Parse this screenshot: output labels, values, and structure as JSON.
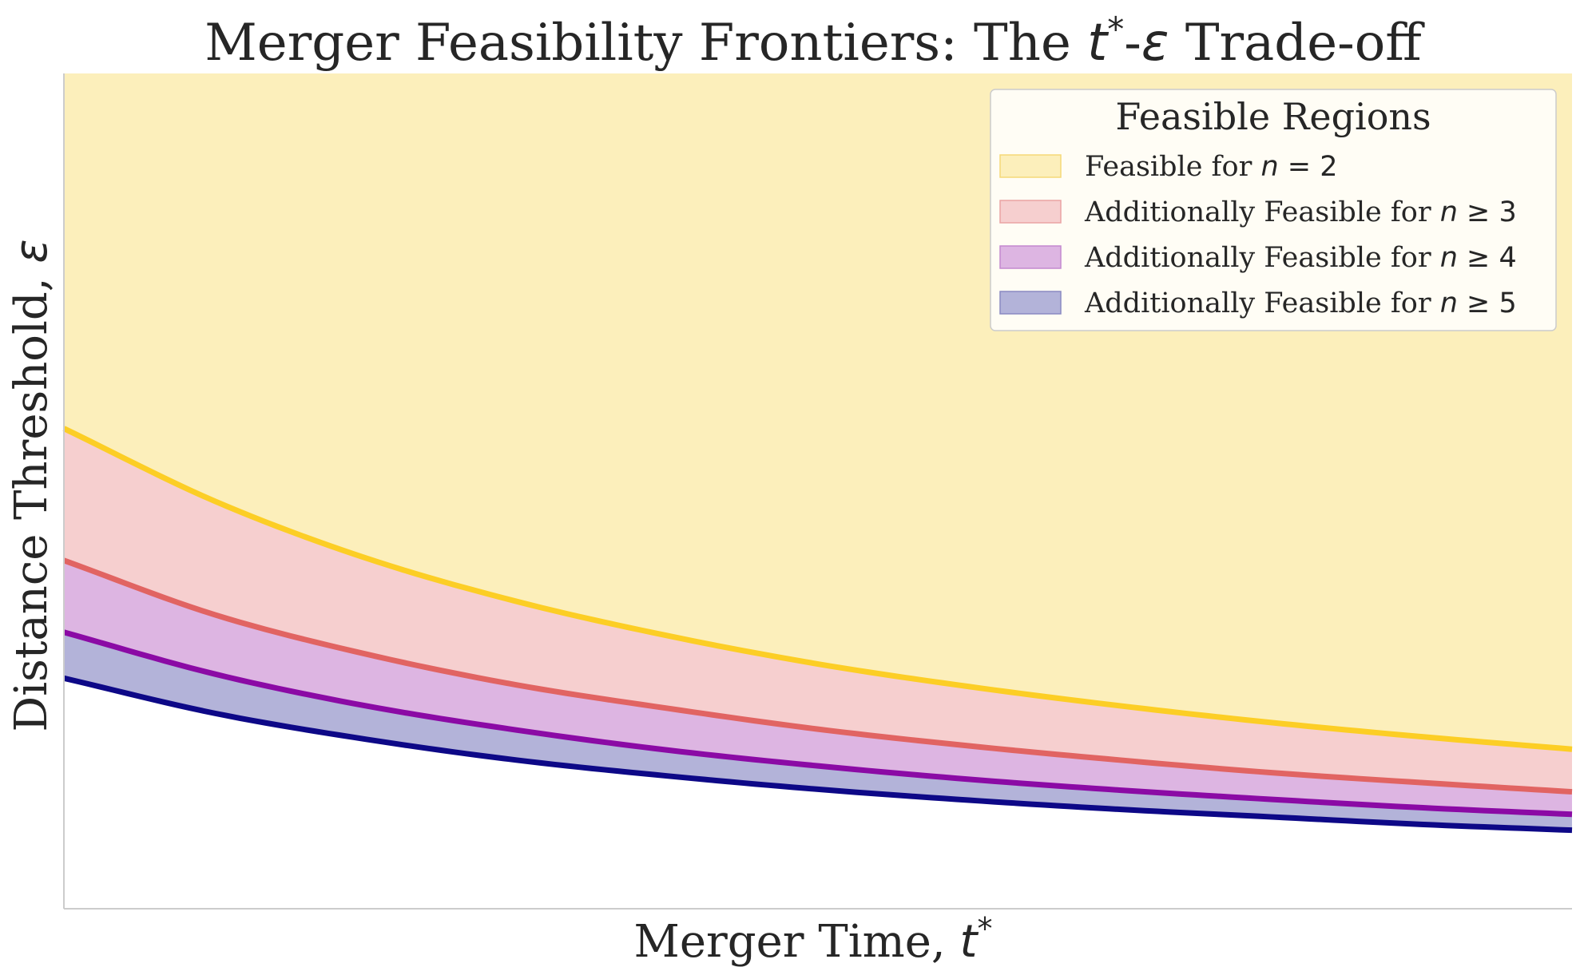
{
  "chart_data": {
    "type": "area",
    "title": {
      "prefix": "Merger Feasibility Frontiers: The ",
      "t_symbol": "t",
      "star": "*",
      "dash": "-",
      "eps_symbol": "ε",
      "suffix": " Trade-off"
    },
    "xlabel": {
      "text": "Merger Time, ",
      "symbol": "t",
      "star": "*"
    },
    "ylabel": {
      "text": "Distance Threshold, ",
      "symbol": "ε"
    },
    "xlim": [
      0,
      1
    ],
    "ylim": [
      0,
      1
    ],
    "x": [
      0.0,
      0.1,
      0.2,
      0.3,
      0.4,
      0.5,
      0.6,
      0.7,
      0.8,
      0.9,
      1.0
    ],
    "series": [
      {
        "key": "n2",
        "values": [
          0.575,
          0.488,
          0.42,
          0.368,
          0.327,
          0.293,
          0.266,
          0.243,
          0.223,
          0.206,
          0.191
        ],
        "line_color": "#fcce25",
        "fill_color": "#fcefbb"
      },
      {
        "key": "n3",
        "values": [
          0.417,
          0.352,
          0.305,
          0.268,
          0.24,
          0.215,
          0.195,
          0.178,
          0.163,
          0.151,
          0.14
        ],
        "line_color": "#e16462",
        "fill_color": "#f6cfcf"
      },
      {
        "key": "n4",
        "values": [
          0.331,
          0.281,
          0.243,
          0.214,
          0.19,
          0.171,
          0.155,
          0.142,
          0.131,
          0.121,
          0.113
        ],
        "line_color": "#8b0aa5",
        "fill_color": "#ddb5e2"
      },
      {
        "key": "n5",
        "values": [
          0.276,
          0.234,
          0.203,
          0.178,
          0.159,
          0.143,
          0.13,
          0.119,
          0.11,
          0.101,
          0.094
        ],
        "line_color": "#0d0887",
        "fill_color": "#b3b3d9"
      }
    ],
    "legend": {
      "position": "top-right",
      "title": "Feasible Regions",
      "entries": [
        {
          "key": "n2",
          "text": "Feasible for ",
          "var": "n",
          "op": "=",
          "num": "2",
          "swatch": "#fcefbb",
          "edge": "#f5d978"
        },
        {
          "key": "n3",
          "text": "Additionally Feasible for ",
          "var": "n",
          "op": "≥",
          "num": "3",
          "swatch": "#f6cfcf",
          "edge": "#eaa3a3"
        },
        {
          "key": "n4",
          "text": "Additionally Feasible for ",
          "var": "n",
          "op": "≥",
          "num": "4",
          "swatch": "#ddb5e2",
          "edge": "#c488cf"
        },
        {
          "key": "n5",
          "text": "Additionally Feasible for ",
          "var": "n",
          "op": "≥",
          "num": "5",
          "swatch": "#b3b3d9",
          "edge": "#8a8ac2"
        }
      ]
    },
    "grid": false,
    "ticks": false
  }
}
